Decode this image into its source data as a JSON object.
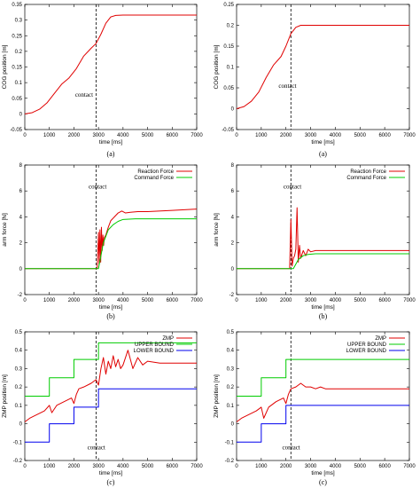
{
  "chart_data": [
    {
      "type": "line",
      "caption": "(a)",
      "xlabel": "time [ms]",
      "ylabel": "COG position [m]",
      "xlim": [
        0,
        7000
      ],
      "ylim": [
        -0.05,
        0.35
      ],
      "xticks": [
        "0",
        "1000",
        "2000",
        "3000",
        "4000",
        "5000",
        "6000",
        "7000"
      ],
      "yticks": [
        "-0.05",
        "0",
        "0.05",
        "0.1",
        "0.15",
        "0.2",
        "0.25",
        "0.3",
        "0.35"
      ],
      "vline_x": 2900,
      "annotation": {
        "text": "contact",
        "x": 2050,
        "y": 0.055
      },
      "grid": false,
      "series": [
        {
          "color": "#e00000",
          "x": [
            0,
            300,
            600,
            900,
            1200,
            1500,
            1800,
            2100,
            2400,
            2700,
            2900,
            3100,
            3300,
            3500,
            3700,
            4000,
            4500,
            5000,
            6000,
            7000
          ],
          "y": [
            0,
            0.004,
            0.015,
            0.035,
            0.065,
            0.095,
            0.115,
            0.145,
            0.185,
            0.21,
            0.225,
            0.255,
            0.29,
            0.31,
            0.315,
            0.316,
            0.316,
            0.316,
            0.316,
            0.316
          ]
        }
      ]
    },
    {
      "type": "line",
      "caption": "(a)",
      "xlabel": "time [ms]",
      "ylabel": "COG position [m]",
      "xlim": [
        0,
        7000
      ],
      "ylim": [
        -0.05,
        0.25
      ],
      "xticks": [
        "0",
        "1000",
        "2000",
        "3000",
        "4000",
        "5000",
        "6000",
        "7000"
      ],
      "yticks": [
        "-0.05",
        "0",
        "0.05",
        "0.1",
        "0.15",
        "0.2",
        "0.25"
      ],
      "vline_x": 2200,
      "annotation": {
        "text": "contact",
        "x": 1700,
        "y": 0.05
      },
      "grid": false,
      "series": [
        {
          "color": "#e00000",
          "x": [
            0,
            300,
            600,
            900,
            1200,
            1500,
            1800,
            2000,
            2200,
            2400,
            2600,
            2800,
            3000,
            4000,
            5000,
            6000,
            7000
          ],
          "y": [
            0,
            0.005,
            0.018,
            0.04,
            0.075,
            0.105,
            0.125,
            0.15,
            0.18,
            0.195,
            0.2,
            0.2,
            0.2,
            0.2,
            0.2,
            0.2,
            0.2
          ]
        }
      ]
    },
    {
      "type": "line",
      "caption": "(b)",
      "xlabel": "time [ms]",
      "ylabel": "arm force [N]",
      "xlim": [
        0,
        7000
      ],
      "ylim": [
        -2,
        8
      ],
      "xticks": [
        "0",
        "1000",
        "2000",
        "3000",
        "4000",
        "5000",
        "6000",
        "7000"
      ],
      "yticks": [
        "-2",
        "0",
        "2",
        "4",
        "6",
        "8"
      ],
      "vline_x": 2900,
      "annotation": {
        "text": "contact",
        "x": 2600,
        "y": 6.2
      },
      "legend_position": "top-right",
      "grid": false,
      "series": [
        {
          "name": "Reaction Force",
          "color": "#e00000",
          "x": [
            0,
            2950,
            3000,
            3030,
            3060,
            3090,
            3120,
            3150,
            3180,
            3210,
            3240,
            3300,
            3400,
            3500,
            3650,
            3800,
            3950,
            4100,
            4300,
            4600,
            5000,
            6000,
            7000
          ],
          "y": [
            0,
            0,
            2.8,
            0.3,
            3.0,
            0.5,
            3.2,
            1.4,
            2.6,
            1.8,
            2.4,
            2.6,
            3.2,
            3.7,
            4.0,
            4.3,
            4.45,
            4.3,
            4.35,
            4.4,
            4.4,
            4.5,
            4.6
          ]
        },
        {
          "name": "Command Force",
          "color": "#00cc00",
          "x": [
            0,
            3000,
            3200,
            3400,
            3600,
            3800,
            4000,
            4500,
            7000
          ],
          "y": [
            0,
            0,
            2.0,
            3.0,
            3.4,
            3.65,
            3.8,
            3.85,
            3.85
          ]
        }
      ]
    },
    {
      "type": "line",
      "caption": "(b)",
      "xlabel": "time [ms]",
      "ylabel": "arm force [N]",
      "xlim": [
        0,
        7000
      ],
      "ylim": [
        -2,
        8
      ],
      "xticks": [
        "0",
        "1000",
        "2000",
        "3000",
        "4000",
        "5000",
        "6000",
        "7000"
      ],
      "yticks": [
        "-2",
        "0",
        "2",
        "4",
        "6",
        "8"
      ],
      "vline_x": 2200,
      "annotation": {
        "text": "contact",
        "x": 1900,
        "y": 6.2
      },
      "legend_position": "top-right",
      "grid": false,
      "series": [
        {
          "name": "Reaction Force",
          "color": "#e00000",
          "x": [
            0,
            2150,
            2200,
            2250,
            2300,
            2350,
            2400,
            2450,
            2500,
            2550,
            2600,
            2700,
            2800,
            2900,
            3000,
            3200,
            3500,
            4000,
            5000,
            6000,
            7000
          ],
          "y": [
            0,
            0,
            3.8,
            0.2,
            0.8,
            1.0,
            1.5,
            4.7,
            0.5,
            1.8,
            0.8,
            1.4,
            1.0,
            1.5,
            1.3,
            1.4,
            1.4,
            1.4,
            1.4,
            1.4,
            1.4
          ]
        },
        {
          "name": "Command Force",
          "color": "#00cc00",
          "x": [
            0,
            2300,
            2500,
            2700,
            2900,
            3200,
            7000
          ],
          "y": [
            0,
            0,
            0.7,
            1.0,
            1.1,
            1.15,
            1.15
          ]
        }
      ]
    },
    {
      "type": "line",
      "caption": "(c)",
      "xlabel": "time [ms]",
      "ylabel": "ZMP position [m]",
      "xlim": [
        0,
        7000
      ],
      "ylim": [
        -0.2,
        0.5
      ],
      "xticks": [
        "0",
        "1000",
        "2000",
        "3000",
        "4000",
        "5000",
        "6000",
        "7000"
      ],
      "yticks": [
        "-0.2",
        "-0.1",
        "0",
        "0.1",
        "0.2",
        "0.3",
        "0.4",
        "0.5"
      ],
      "vline_x": 2900,
      "annotation": {
        "text": "contact",
        "x": 2550,
        "y": -0.14
      },
      "legend_position": "top-right",
      "grid": false,
      "series": [
        {
          "name": "ZMP",
          "color": "#e00000",
          "x": [
            0,
            200,
            500,
            800,
            1000,
            1100,
            1300,
            1600,
            1900,
            2000,
            2100,
            2200,
            2400,
            2700,
            2900,
            3000,
            3100,
            3200,
            3300,
            3400,
            3500,
            3600,
            3700,
            3800,
            3900,
            4000,
            4200,
            4400,
            4600,
            4800,
            5000,
            5500,
            6000,
            7000
          ],
          "y": [
            0.01,
            0.03,
            0.05,
            0.07,
            0.1,
            0.06,
            0.1,
            0.12,
            0.14,
            0.11,
            0.16,
            0.19,
            0.2,
            0.22,
            0.24,
            0.21,
            0.3,
            0.36,
            0.27,
            0.34,
            0.3,
            0.37,
            0.31,
            0.35,
            0.3,
            0.32,
            0.4,
            0.3,
            0.36,
            0.32,
            0.34,
            0.33,
            0.33,
            0.33
          ]
        },
        {
          "name": "UPPER BOUND",
          "color": "#00cc00",
          "x": [
            0,
            1000,
            1000,
            2000,
            2000,
            3000,
            3000,
            7000
          ],
          "y": [
            0.15,
            0.15,
            0.25,
            0.25,
            0.35,
            0.35,
            0.44,
            0.44
          ]
        },
        {
          "name": "LOWER BOUND",
          "color": "#0000ee",
          "x": [
            0,
            1000,
            1000,
            2000,
            2000,
            3000,
            3000,
            7000
          ],
          "y": [
            -0.1,
            -0.1,
            0.0,
            0.0,
            0.09,
            0.09,
            0.19,
            0.19
          ]
        }
      ]
    },
    {
      "type": "line",
      "caption": "(c)",
      "xlabel": "time [ms]",
      "ylabel": "ZMP position [m]",
      "xlim": [
        0,
        7000
      ],
      "ylim": [
        -0.2,
        0.5
      ],
      "xticks": [
        "0",
        "1000",
        "2000",
        "3000",
        "4000",
        "5000",
        "6000",
        "7000"
      ],
      "yticks": [
        "-0.2",
        "-0.1",
        "0",
        "0.1",
        "0.2",
        "0.3",
        "0.4",
        "0.5"
      ],
      "vline_x": 2200,
      "annotation": {
        "text": "contact",
        "x": 1850,
        "y": -0.14
      },
      "legend_position": "top-right",
      "grid": false,
      "series": [
        {
          "name": "ZMP",
          "color": "#e00000",
          "x": [
            0,
            200,
            500,
            800,
            1000,
            1100,
            1300,
            1600,
            1900,
            2000,
            2100,
            2200,
            2400,
            2600,
            2800,
            3000,
            3200,
            3400,
            3600,
            3800,
            4000,
            4500,
            5000,
            6000,
            7000
          ],
          "y": [
            0.01,
            0.03,
            0.05,
            0.07,
            0.09,
            0.03,
            0.09,
            0.12,
            0.14,
            0.11,
            0.16,
            0.19,
            0.2,
            0.22,
            0.2,
            0.2,
            0.19,
            0.2,
            0.19,
            0.19,
            0.19,
            0.19,
            0.19,
            0.19,
            0.19
          ]
        },
        {
          "name": "UPPER BOUND",
          "color": "#00cc00",
          "x": [
            0,
            1000,
            1000,
            2000,
            2000,
            2200,
            2200,
            7000
          ],
          "y": [
            0.15,
            0.15,
            0.25,
            0.25,
            0.35,
            0.35,
            0.35,
            0.35
          ]
        },
        {
          "name": "LOWER BOUND",
          "color": "#0000ee",
          "x": [
            0,
            1000,
            1000,
            2000,
            2000,
            2200,
            2200,
            7000
          ],
          "y": [
            -0.1,
            -0.1,
            0.0,
            0.0,
            0.1,
            0.1,
            0.1,
            0.1
          ]
        }
      ]
    }
  ]
}
